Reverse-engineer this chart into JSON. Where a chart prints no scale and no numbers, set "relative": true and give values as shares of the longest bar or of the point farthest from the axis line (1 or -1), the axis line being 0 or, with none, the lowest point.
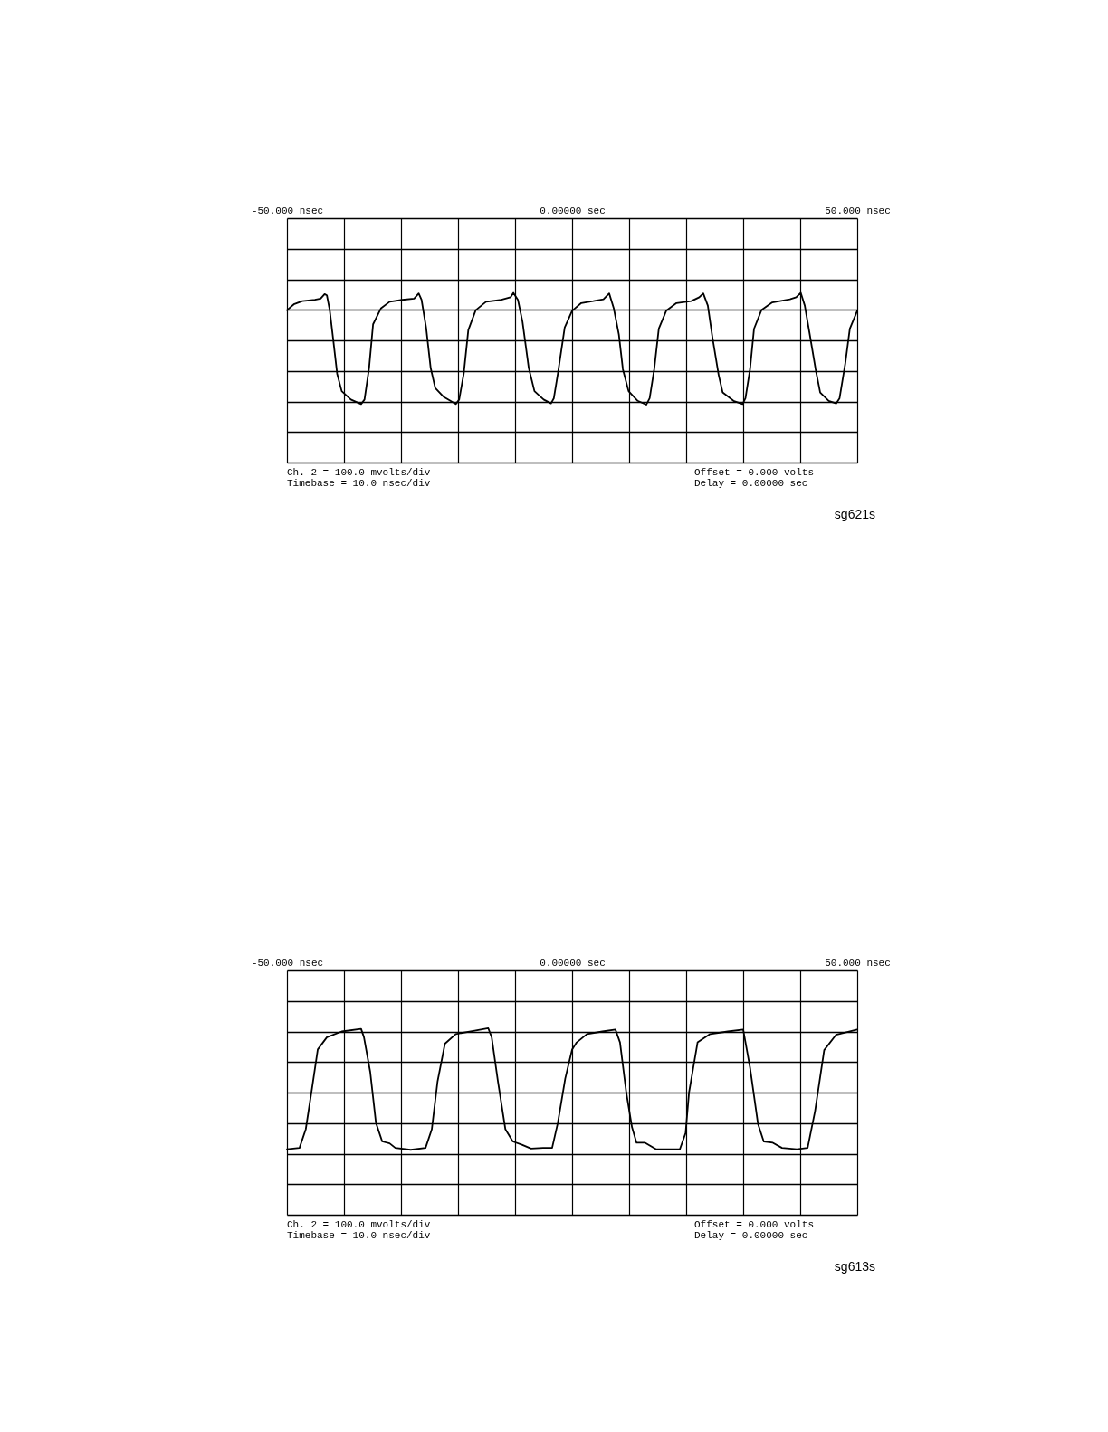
{
  "chart_data": [
    {
      "type": "line",
      "relative": true,
      "xlim": [
        -50,
        50
      ],
      "xticks": [
        {
          "value": -50,
          "label": "-50.000   nsec"
        },
        {
          "value": -40,
          "label": null
        },
        {
          "value": -30,
          "label": null
        },
        {
          "value": -20,
          "label": null
        },
        {
          "value": -10,
          "label": null
        },
        {
          "value": 0,
          "label": "0.00000   sec"
        },
        {
          "value": 10,
          "label": null
        },
        {
          "value": 20,
          "label": null
        },
        {
          "value": 30,
          "label": null
        },
        {
          "value": 40,
          "label": null
        },
        {
          "value": 50,
          "label": "50.000   nsec"
        }
      ],
      "tick_labels": "x",
      "grid": true,
      "marker": "none",
      "line_style": "solid",
      "series": [
        {
          "color": "#000000",
          "x": [
            -50,
            -48.8,
            -47.3,
            -45.1,
            -44.1,
            -43.4,
            -43.0,
            -42.5,
            -41.9,
            -41.2,
            -40.4,
            -38.8,
            -37.0,
            -36.4,
            -35.6,
            -34.9,
            -33.5,
            -32.0,
            -29.8,
            -27.7,
            -26.9,
            -26.4,
            -25.6,
            -24.8,
            -24.0,
            -22.5,
            -20.4,
            -19.8,
            -19.0,
            -18.2,
            -16.9,
            -15.1,
            -12.4,
            -10.8,
            -10.3,
            -9.5,
            -8.7,
            -7.6,
            -6.6,
            -5.0,
            -3.7,
            -3.2,
            -2.5,
            -1.3,
            0,
            1.6,
            3.7,
            5.5,
            6.5,
            7.3,
            8.2,
            8.9,
            9.9,
            11.5,
            13.0,
            13.6,
            14.4,
            15.2,
            16.5,
            18.3,
            20.9,
            22.3,
            23.0,
            23.8,
            24.6,
            25.7,
            26.4,
            28.3,
            29.9,
            30.4,
            31.2,
            31.9,
            33.2,
            35.1,
            38.2,
            39.3,
            40.1,
            40.8,
            41.6,
            42.7,
            43.5,
            45.0,
            46.3,
            46.9,
            47.9,
            48.7,
            50
          ],
          "values": [
            0.47,
            0.56,
            0.61,
            0.63,
            0.65,
            0.72,
            0.7,
            0.47,
            0.02,
            -0.52,
            -0.79,
            -0.92,
            -0.99,
            -0.92,
            -0.43,
            0.25,
            0.5,
            0.6,
            0.63,
            0.65,
            0.73,
            0.63,
            0.2,
            -0.43,
            -0.74,
            -0.88,
            -0.99,
            -0.92,
            -0.52,
            0.16,
            0.47,
            0.6,
            0.63,
            0.67,
            0.74,
            0.63,
            0.29,
            -0.43,
            -0.79,
            -0.92,
            -0.98,
            -0.9,
            -0.52,
            0.2,
            0.46,
            0.58,
            0.61,
            0.64,
            0.73,
            0.5,
            0.09,
            -0.45,
            -0.79,
            -0.94,
            -1.0,
            -0.9,
            -0.45,
            0.18,
            0.46,
            0.58,
            0.61,
            0.67,
            0.73,
            0.54,
            0.05,
            -0.54,
            -0.81,
            -0.94,
            -0.99,
            -0.9,
            -0.45,
            0.18,
            0.47,
            0.59,
            0.64,
            0.67,
            0.74,
            0.54,
            0.13,
            -0.45,
            -0.81,
            -0.94,
            -0.98,
            -0.9,
            -0.36,
            0.18,
            0.46
          ]
        }
      ],
      "annotations": [
        "Ch. 2      =  100.0 mvolts/div",
        "Timebase   =  10.0 nsec/div",
        "Offset    =  0.000   volts",
        "Delay     =  0.00000   sec",
        "sg621s"
      ]
    },
    {
      "type": "line",
      "relative": true,
      "xlim": [
        -50,
        50
      ],
      "xticks": [
        {
          "value": -50,
          "label": "-50.000   nsec"
        },
        {
          "value": -40,
          "label": null
        },
        {
          "value": -30,
          "label": null
        },
        {
          "value": -20,
          "label": null
        },
        {
          "value": -10,
          "label": null
        },
        {
          "value": 0,
          "label": "0.00000   sec"
        },
        {
          "value": 10,
          "label": null
        },
        {
          "value": 20,
          "label": null
        },
        {
          "value": 30,
          "label": null
        },
        {
          "value": 40,
          "label": null
        },
        {
          "value": 50,
          "label": "50.000   nsec"
        }
      ],
      "tick_labels": "x",
      "grid": true,
      "marker": "none",
      "line_style": "solid",
      "series": [
        {
          "color": "#000000",
          "x": [
            -50,
            -47.8,
            -46.7,
            -45.6,
            -44.6,
            -43.0,
            -40.4,
            -37.0,
            -36.5,
            -35.4,
            -34.4,
            -33.3,
            -32.0,
            -31.0,
            -28.3,
            -25.7,
            -24.6,
            -23.6,
            -22.3,
            -20.4,
            -17.3,
            -14.7,
            -14.1,
            -13.0,
            -11.7,
            -10.4,
            -8.8,
            -7.2,
            -5.1,
            -3.5,
            -2.5,
            -1.2,
            0,
            0.8,
            2.6,
            5.3,
            7.6,
            8.4,
            9.5,
            10.5,
            11.3,
            12.8,
            14.7,
            18.9,
            19.9,
            20.5,
            22.0,
            24.2,
            27.3,
            30.0,
            31.2,
            32.6,
            33.6,
            35.2,
            36.8,
            39.4,
            41.3,
            42.6,
            44.2,
            46.3,
            50
          ],
          "values": [
            -0.88,
            -0.86,
            -0.57,
            0.07,
            0.67,
            0.86,
            0.95,
            0.99,
            0.86,
            0.32,
            -0.47,
            -0.76,
            -0.79,
            -0.86,
            -0.89,
            -0.86,
            -0.57,
            0.17,
            0.76,
            0.91,
            0.96,
            1.0,
            0.86,
            0.17,
            -0.57,
            -0.76,
            -0.81,
            -0.87,
            -0.86,
            -0.86,
            -0.47,
            0.22,
            0.67,
            0.78,
            0.91,
            0.95,
            0.98,
            0.78,
            0.0,
            -0.54,
            -0.78,
            -0.78,
            -0.88,
            -0.88,
            -0.63,
            0.0,
            0.78,
            0.91,
            0.95,
            0.98,
            0.39,
            -0.49,
            -0.76,
            -0.78,
            -0.86,
            -0.88,
            -0.86,
            -0.29,
            0.66,
            0.9,
            0.98
          ]
        }
      ],
      "annotations": [
        "Ch. 2      =  100.0 mvolts/div",
        "Timebase   =  10.0 nsec/div",
        "Offset    =  0.000   volts",
        "Delay     =  0.00000   sec",
        "sg613s"
      ]
    }
  ]
}
